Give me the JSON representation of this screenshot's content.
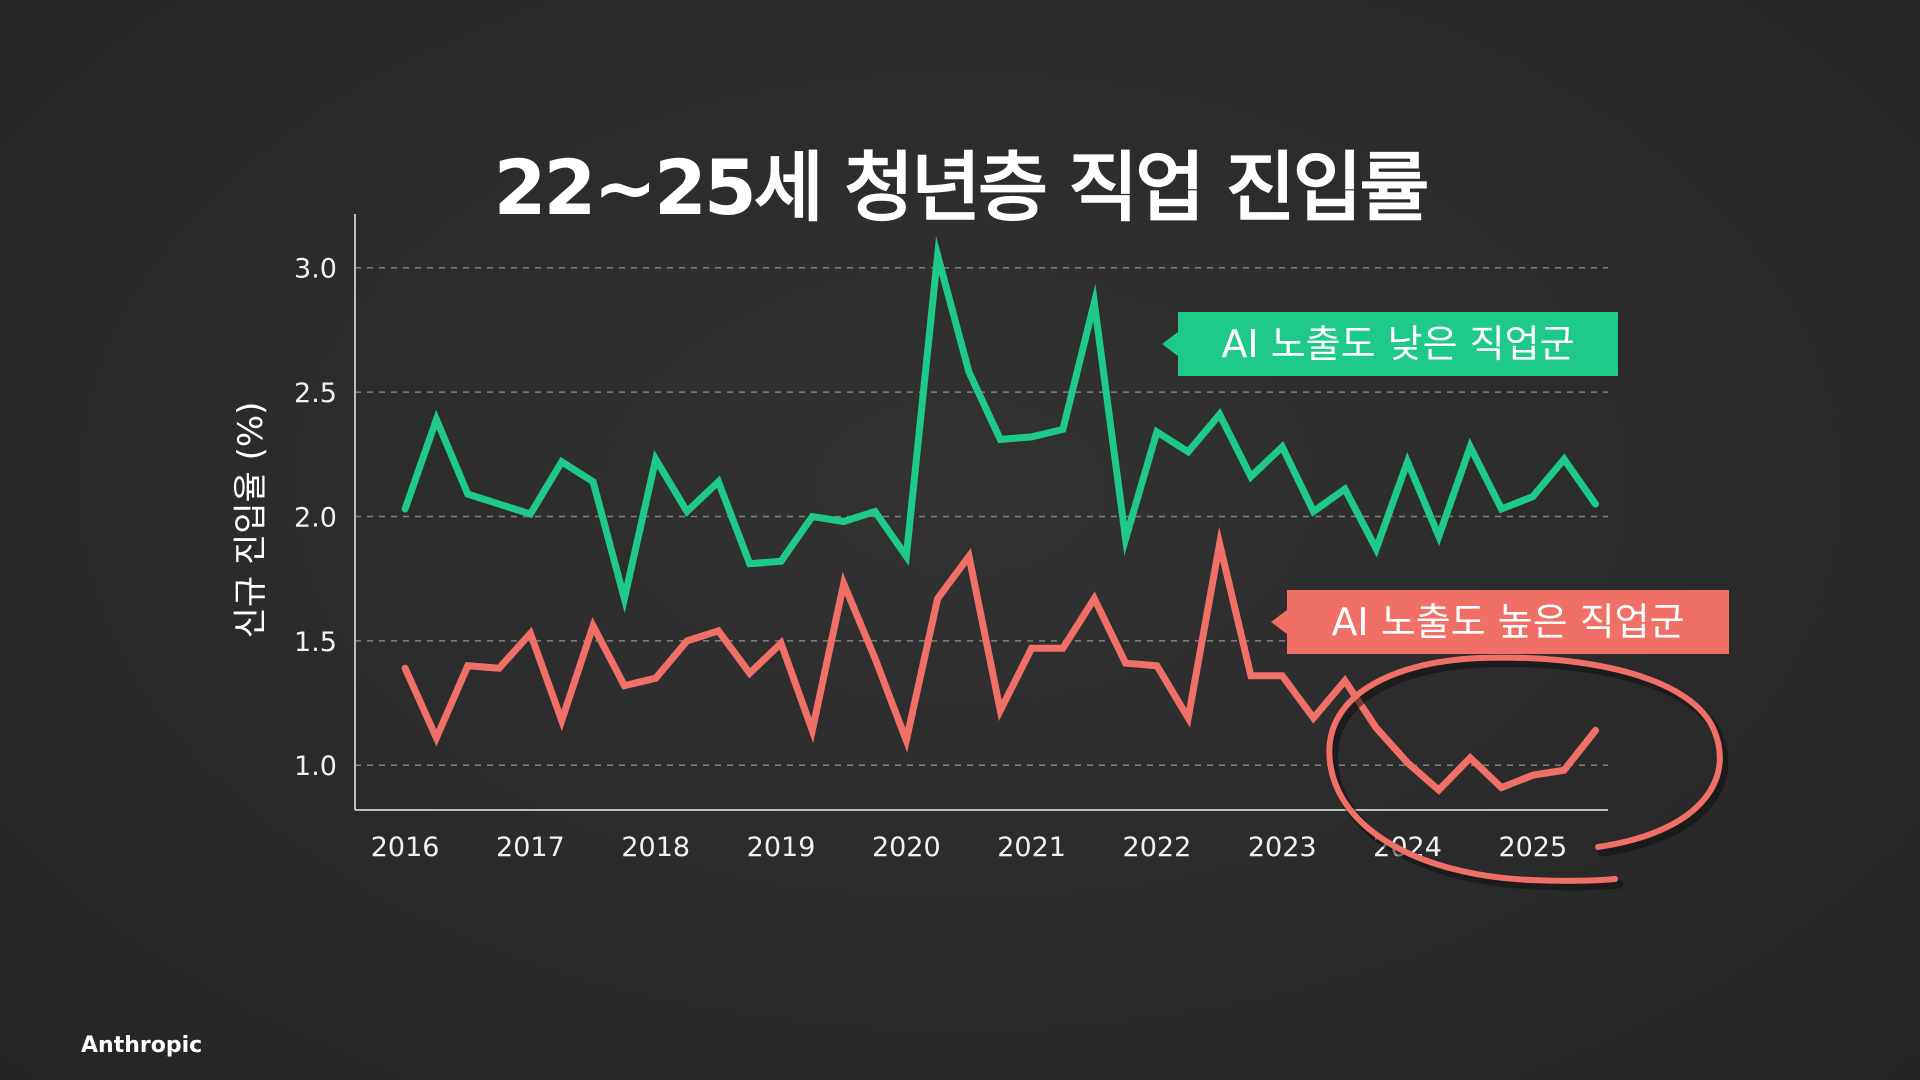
{
  "page": {
    "brand": "Anthropic"
  },
  "colors": {
    "background": "#2b2b2b",
    "low_exposure": "#1ec98a",
    "high_exposure": "#f06f66",
    "axis": "#bdbdbd",
    "grid": "#9a9a9a",
    "text": "#ffffff"
  },
  "chart_data": {
    "type": "line",
    "title": "22~25세 청년층 직업 진입률",
    "xlabel": "",
    "ylabel": "신규 진입율 (%)",
    "xlim": [
      2015.6,
      2025.6
    ],
    "ylim": [
      0.82,
      3.2
    ],
    "grid": "horizontal-dashed",
    "x_ticks": [
      2016,
      2017,
      2018,
      2019,
      2020,
      2021,
      2022,
      2023,
      2024,
      2025
    ],
    "y_ticks": [
      1.0,
      1.5,
      2.0,
      2.5,
      3.0
    ],
    "y_tick_labels": [
      "1.0",
      "1.5",
      "2.0",
      "2.5",
      "3.0"
    ],
    "x": [
      2016.0,
      2016.25,
      2016.5,
      2016.75,
      2017.0,
      2017.25,
      2017.5,
      2017.75,
      2018.0,
      2018.25,
      2018.5,
      2018.75,
      2019.0,
      2019.25,
      2019.5,
      2019.75,
      2020.0,
      2020.25,
      2020.5,
      2020.75,
      2021.0,
      2021.25,
      2021.5,
      2021.75,
      2022.0,
      2022.25,
      2022.5,
      2022.75,
      2023.0,
      2023.25,
      2023.5,
      2023.75,
      2024.0,
      2024.25,
      2024.5,
      2024.75,
      2025.0,
      2025.25,
      2025.5
    ],
    "series": [
      {
        "name": "AI 노출도 낮은 직업군",
        "color": "#1ec98a",
        "label_position": "right-of-peak",
        "values": [
          2.03,
          2.39,
          2.09,
          2.05,
          2.01,
          2.22,
          2.14,
          1.67,
          2.23,
          2.02,
          2.14,
          1.81,
          1.82,
          2.0,
          1.98,
          2.02,
          1.84,
          3.05,
          2.58,
          2.31,
          2.32,
          2.35,
          2.86,
          1.91,
          2.34,
          2.26,
          2.41,
          2.16,
          2.28,
          2.02,
          2.11,
          1.87,
          2.22,
          1.92,
          2.28,
          2.03,
          2.08,
          2.23,
          2.05
        ]
      },
      {
        "name": "AI 노출도 높은 직업군",
        "color": "#f06f66",
        "label_position": "right",
        "values": [
          1.39,
          1.11,
          1.4,
          1.39,
          1.53,
          1.18,
          1.56,
          1.32,
          1.35,
          1.5,
          1.54,
          1.37,
          1.49,
          1.14,
          1.73,
          1.43,
          1.1,
          1.67,
          1.84,
          1.22,
          1.47,
          1.47,
          1.67,
          1.41,
          1.4,
          1.19,
          1.89,
          1.36,
          1.36,
          1.19,
          1.34,
          1.15,
          1.01,
          0.9,
          1.03,
          0.91,
          0.96,
          0.98,
          1.14
        ]
      }
    ],
    "annotations": [
      {
        "type": "hand-drawn-circle",
        "color": "#f06f66",
        "target": "AI 노출도 높은 직업군, 2023.6–2025.5"
      }
    ]
  }
}
